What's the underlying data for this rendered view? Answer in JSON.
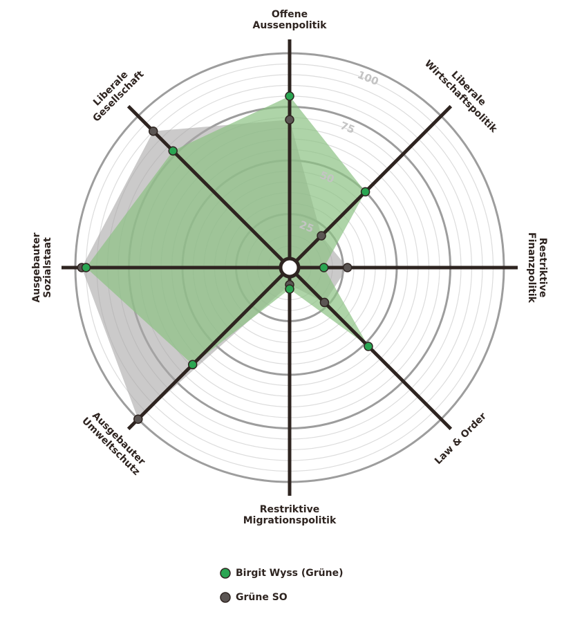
{
  "chart_data": {
    "type": "radar",
    "categories": [
      [
        "Offene",
        "Aussenpolitik"
      ],
      [
        "Liberale",
        "Wirtschaftspolitik"
      ],
      [
        "Restriktive",
        "Finanzpolitik"
      ],
      [
        "Law & Order"
      ],
      [
        "Restriktive",
        "Migrationspolitik"
      ],
      [
        "Ausgebauter",
        "Umweltschutz"
      ],
      [
        "Ausgebauter",
        "Sozialstaat"
      ],
      [
        "Liberale",
        "Gesellschaft"
      ]
    ],
    "series": [
      {
        "name": "Birgit Wyss (Grüne)",
        "color": "#2aa552",
        "fill": "#8cc283",
        "values": [
          80,
          50,
          16,
          52,
          10,
          64,
          95,
          77
        ]
      },
      {
        "name": "Grüne SO",
        "color": "#5b5553",
        "fill": "#a9a7a6",
        "values": [
          69,
          21,
          27,
          23,
          8,
          100,
          97,
          90
        ]
      }
    ],
    "ylim": [
      0,
      100
    ],
    "yticks": [
      25,
      50,
      75,
      100
    ],
    "grid": true
  }
}
